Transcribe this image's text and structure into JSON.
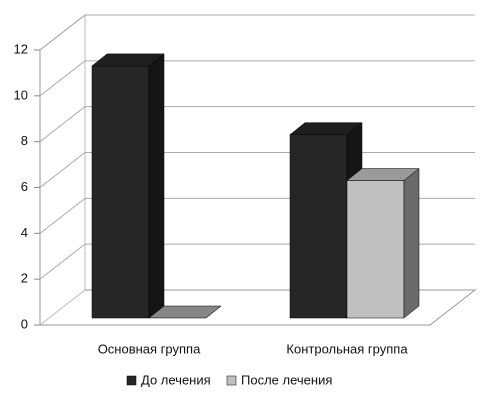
{
  "chart_data": {
    "type": "bar3d",
    "categories": [
      "Основная группа",
      "Контрольная группа"
    ],
    "series": [
      {
        "name": "До лечения",
        "color": "#262626",
        "values": [
          11,
          8
        ]
      },
      {
        "name": "После лечения",
        "color": "#c0c0c0",
        "values": [
          0,
          6
        ]
      }
    ],
    "ylim": [
      0,
      12
    ],
    "yticks": [
      0,
      2,
      4,
      6,
      8,
      10,
      12
    ],
    "grid": true,
    "legend": "bottom"
  }
}
